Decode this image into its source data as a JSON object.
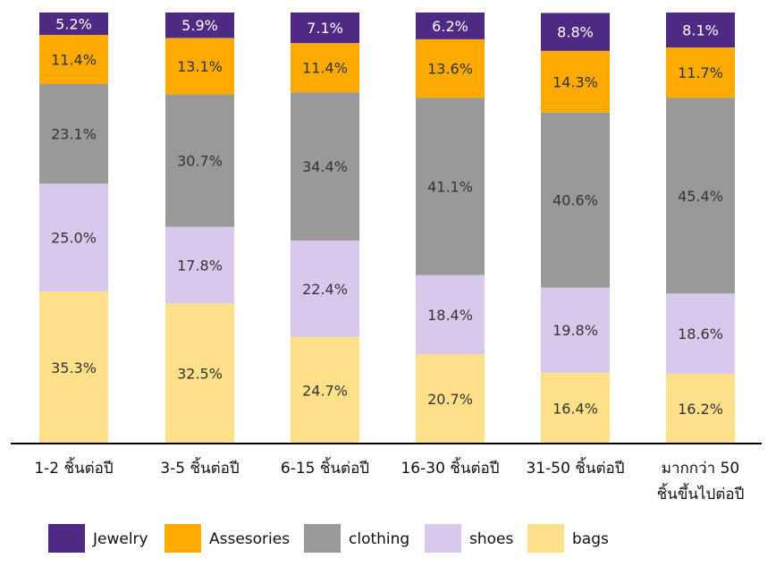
{
  "chart_data": {
    "type": "bar",
    "stacked": true,
    "categories": [
      "1-2 ชิ้นต่อปี",
      "3-5 ชิ้นต่อปี",
      "6-15 ชิ้นต่อปี",
      "16-30 ชิ้นต่อปี",
      "31-50 ชิ้นต่อปี",
      "มากกว่า 50\nชิ้นขึ้นไปต่อปี"
    ],
    "series": [
      {
        "name": "bags",
        "color": "#FFE08A",
        "values": [
          35.3,
          32.5,
          24.7,
          20.7,
          16.4,
          16.2
        ]
      },
      {
        "name": "shoes",
        "color": "#D8C8EC",
        "values": [
          25.0,
          17.8,
          22.4,
          18.4,
          19.8,
          18.6
        ]
      },
      {
        "name": "clothing",
        "color": "#999999",
        "values": [
          23.1,
          30.7,
          34.4,
          41.1,
          40.6,
          45.4
        ]
      },
      {
        "name": "Assesories",
        "color": "#FFAA00",
        "values": [
          11.4,
          13.1,
          11.4,
          13.6,
          14.3,
          11.7
        ]
      },
      {
        "name": "Jewelry",
        "color": "#4F2A84",
        "values": [
          5.2,
          5.9,
          7.1,
          6.2,
          8.8,
          8.1
        ]
      }
    ],
    "data_labels": [
      [
        "35.3%",
        "32.5%",
        "24.7%",
        "20.7%",
        "16.4%",
        "16.2%"
      ],
      [
        "25.0%",
        "17.8%",
        "22.4%",
        "18.4%",
        "19.8%",
        "18.6%"
      ],
      [
        "23.1%",
        "30.7%",
        "34.4%",
        "41.1%",
        "40.6%",
        "45.4%"
      ],
      [
        "11.4%",
        "13.1%",
        "11.4%",
        "13.6%",
        "14.3%",
        "11.7%"
      ],
      [
        "5.2%",
        "5.9%",
        "7.1%",
        "6.2%",
        "8.8%",
        "8.1%"
      ]
    ],
    "legend_order": [
      "Jewelry",
      "Assesories",
      "clothing",
      "shoes",
      "bags"
    ],
    "legend_position": "bottom",
    "grid": false,
    "ylim": [
      0,
      100
    ]
  }
}
